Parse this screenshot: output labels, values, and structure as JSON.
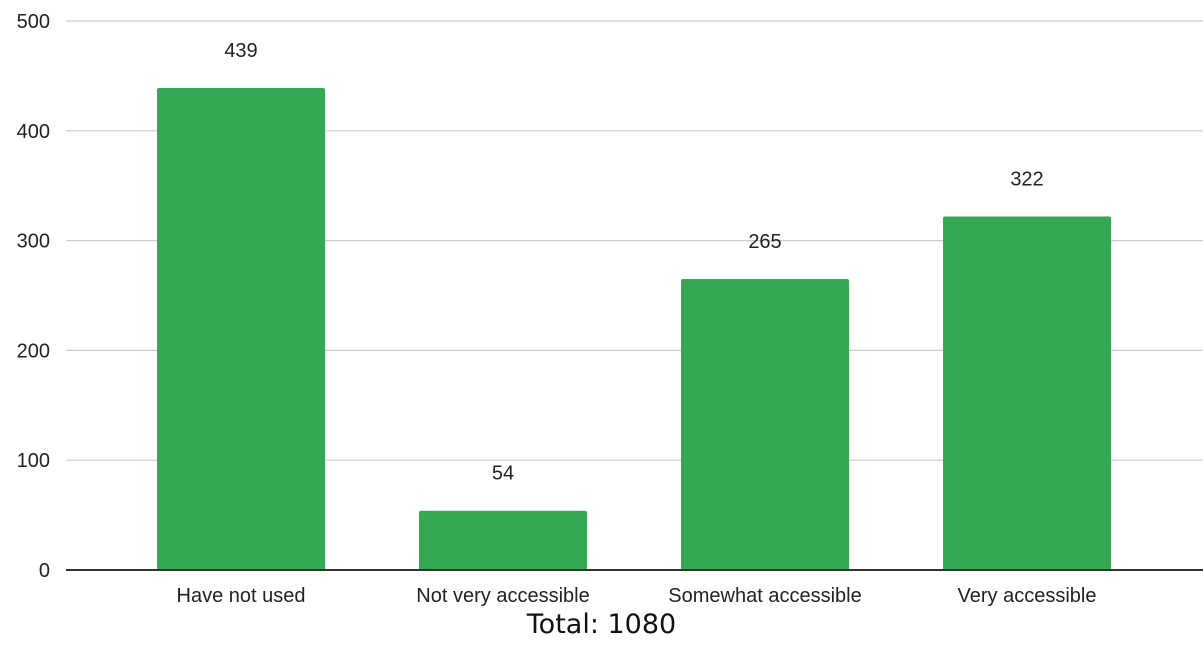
{
  "chart_data": {
    "type": "bar",
    "categories": [
      "Have not used",
      "Not very accessible",
      "Somewhat accessible",
      "Very accessible"
    ],
    "values": [
      439,
      54,
      265,
      322
    ],
    "data_labels": [
      "439",
      "54",
      "265",
      "322"
    ],
    "title": "",
    "xlabel": "",
    "ylabel": "",
    "ylim": [
      0,
      500
    ],
    "yticks": [
      0,
      100,
      200,
      300,
      400,
      500
    ],
    "grid": true,
    "legend": "none",
    "bar_color": "#34a853"
  },
  "caption": "Total: 1080"
}
